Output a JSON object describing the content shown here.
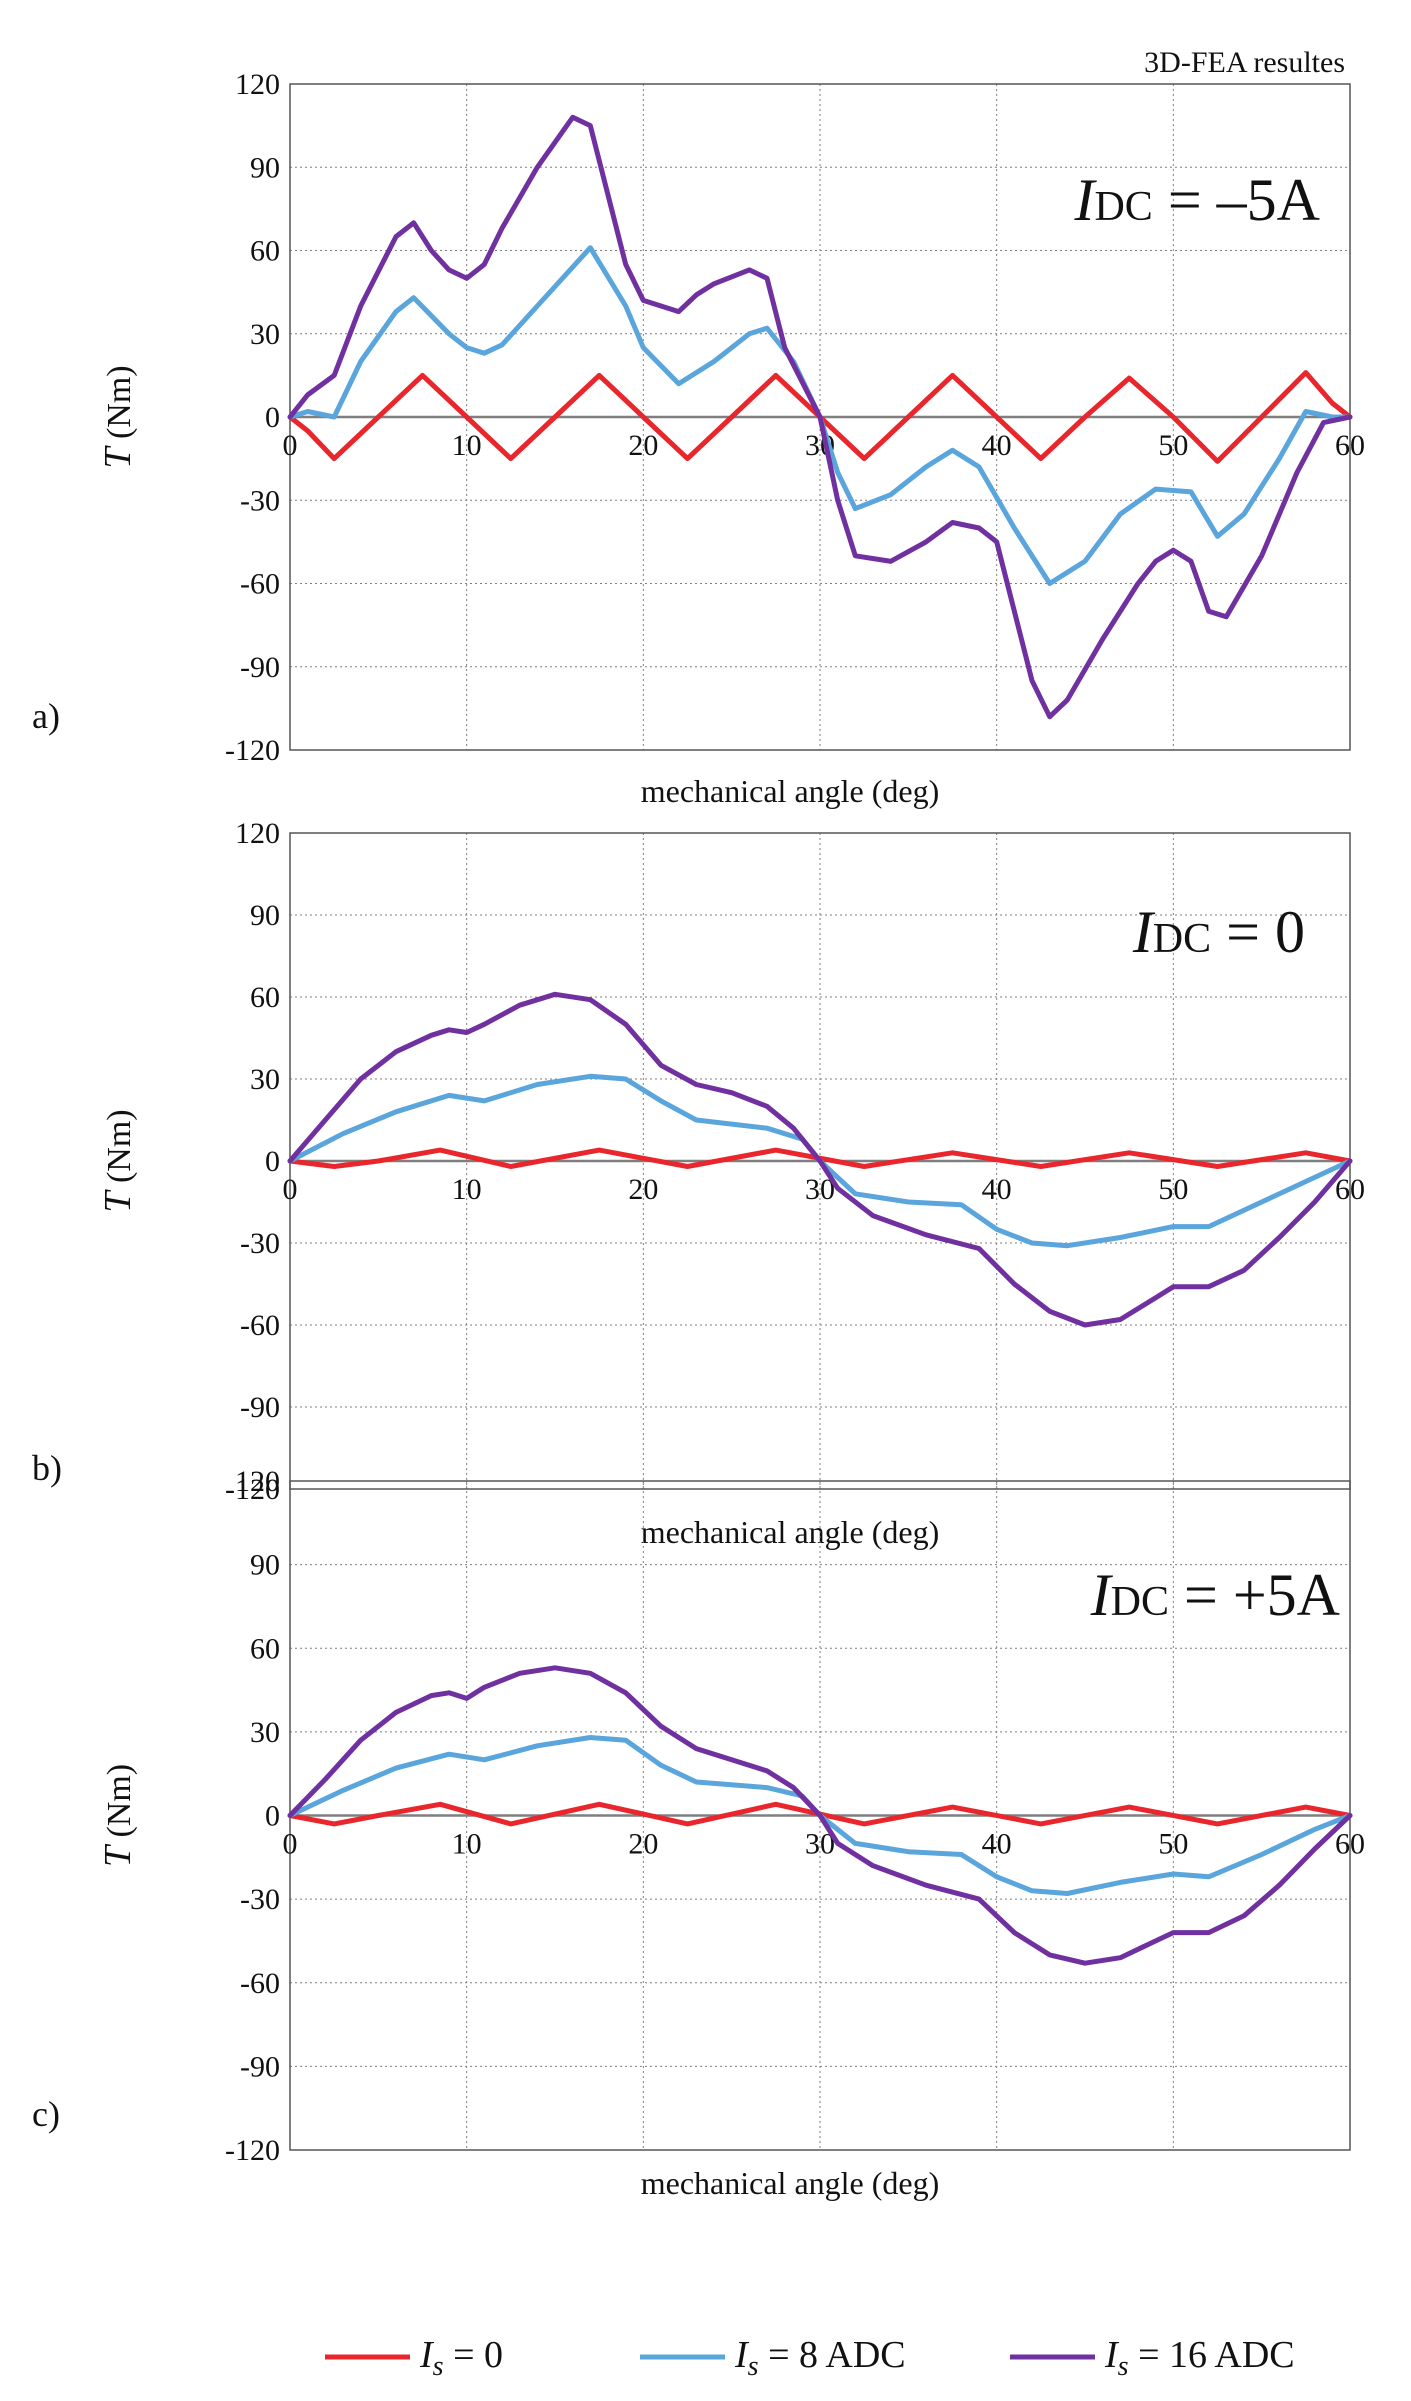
{
  "header_note": "3D-FEA resultes",
  "legend": [
    {
      "label_main": "I",
      "label_sub": "s",
      "label_rest": " = 0",
      "color": "#e8262c"
    },
    {
      "label_main": "I",
      "label_sub": "s",
      "label_rest": " = 8 ADC",
      "color": "#5aa5dc"
    },
    {
      "label_main": "I",
      "label_sub": "s",
      "label_rest": " = 16 ADC",
      "color": "#7030a0"
    }
  ],
  "colors": {
    "red": "#e8262c",
    "blue": "#5aa5dc",
    "purple": "#7030a0",
    "grid": "#7f7f7f"
  },
  "chart_data": [
    {
      "type": "line",
      "panel_label": "a)",
      "annotation": {
        "main": "I",
        "sub": "DC",
        "rest": " = –5A"
      },
      "xlabel": "mechanical angle (deg)",
      "ylabel_main": "T",
      "ylabel_rest": " (Nm)",
      "xlim": [
        0,
        60
      ],
      "ylim": [
        -120,
        120
      ],
      "xticks": [
        0,
        10,
        20,
        30,
        40,
        50,
        60
      ],
      "yticks": [
        120,
        90,
        60,
        30,
        0,
        -30,
        -60,
        -90,
        -120
      ],
      "series": [
        {
          "name": "Is = 0",
          "color": "#e8262c",
          "x": [
            0,
            1,
            2.5,
            5,
            7.5,
            10,
            12.5,
            15,
            17.5,
            20,
            22.5,
            25,
            27.5,
            30,
            32.5,
            35,
            37.5,
            40,
            42.5,
            45,
            47.5,
            50,
            52.5,
            55,
            57.5,
            59,
            60
          ],
          "y": [
            0,
            -5,
            -15,
            0,
            15,
            0,
            -15,
            0,
            15,
            0,
            -15,
            0,
            15,
            0,
            -15,
            0,
            15,
            0,
            -15,
            0,
            14,
            0,
            -16,
            0,
            16,
            5,
            0
          ]
        },
        {
          "name": "Is = 8 ADC",
          "color": "#5aa5dc",
          "x": [
            0,
            1,
            2.5,
            4,
            6,
            7,
            9,
            10,
            11,
            12,
            14,
            17,
            19,
            20,
            22,
            24,
            26,
            27,
            28.5,
            30,
            31,
            32,
            34,
            36,
            37.5,
            39,
            41,
            43,
            45,
            47,
            49,
            51,
            52.5,
            54,
            56,
            57.5,
            59,
            60
          ],
          "y": [
            0,
            2,
            0,
            20,
            38,
            43,
            30,
            25,
            23,
            26,
            40,
            61,
            40,
            25,
            12,
            20,
            30,
            32,
            20,
            0,
            -20,
            -33,
            -28,
            -18,
            -12,
            -18,
            -40,
            -60,
            -52,
            -35,
            -26,
            -27,
            -43,
            -35,
            -15,
            2,
            0,
            0
          ]
        },
        {
          "name": "Is = 16 ADC",
          "color": "#7030a0",
          "x": [
            0,
            1,
            2.5,
            4,
            6,
            7,
            8,
            9,
            10,
            11,
            12,
            14,
            16,
            17,
            18,
            19,
            20,
            21,
            22,
            23,
            24,
            26,
            27,
            28,
            30,
            31,
            32,
            34,
            36,
            37.5,
            39,
            40,
            42,
            43,
            44,
            46,
            48,
            49,
            50,
            51,
            52,
            53,
            55,
            57,
            58.5,
            60
          ],
          "y": [
            0,
            8,
            15,
            40,
            65,
            70,
            60,
            53,
            50,
            55,
            68,
            90,
            108,
            105,
            80,
            55,
            42,
            40,
            38,
            44,
            48,
            53,
            50,
            25,
            0,
            -30,
            -50,
            -52,
            -45,
            -38,
            -40,
            -45,
            -95,
            -108,
            -102,
            -80,
            -60,
            -52,
            -48,
            -52,
            -70,
            -72,
            -50,
            -20,
            -2,
            0
          ]
        }
      ]
    },
    {
      "type": "line",
      "panel_label": "b)",
      "annotation": {
        "main": "I",
        "sub": "DC",
        "rest": "  = 0"
      },
      "xlabel": "mechanical angle (deg)",
      "ylabel_main": "T",
      "ylabel_rest": " (Nm)",
      "xlim": [
        0,
        60
      ],
      "ylim": [
        -120,
        120
      ],
      "xticks": [
        0,
        10,
        20,
        30,
        40,
        50,
        60
      ],
      "yticks": [
        120,
        90,
        60,
        30,
        0,
        -30,
        -60,
        -90,
        -120
      ],
      "series": [
        {
          "name": "Is = 0",
          "color": "#e8262c",
          "x": [
            0,
            2.5,
            5,
            8.5,
            12.5,
            17.5,
            22.5,
            27.5,
            32.5,
            37.5,
            42.5,
            47.5,
            52.5,
            57.5,
            60
          ],
          "y": [
            0,
            -2,
            0,
            4,
            -2,
            4,
            -2,
            4,
            -2,
            3,
            -2,
            3,
            -2,
            3,
            0
          ]
        },
        {
          "name": "Is = 8 ADC",
          "color": "#5aa5dc",
          "x": [
            0,
            3,
            6,
            9,
            11,
            14,
            17,
            19,
            21,
            23,
            27,
            29,
            30,
            32,
            35,
            38,
            40,
            42,
            44,
            47,
            50,
            52,
            55,
            58,
            60
          ],
          "y": [
            0,
            10,
            18,
            24,
            22,
            28,
            31,
            30,
            22,
            15,
            12,
            8,
            0,
            -12,
            -15,
            -16,
            -25,
            -30,
            -31,
            -28,
            -24,
            -24,
            -15,
            -6,
            0
          ]
        },
        {
          "name": "Is = 16 ADC",
          "color": "#7030a0",
          "x": [
            0,
            2,
            4,
            6,
            8,
            9,
            10,
            11,
            13,
            15,
            17,
            19,
            21,
            23,
            25,
            27,
            28.5,
            30,
            31,
            33,
            36,
            39,
            41,
            43,
            45,
            47,
            49,
            50,
            52,
            54,
            56,
            58,
            60
          ],
          "y": [
            0,
            15,
            30,
            40,
            46,
            48,
            47,
            50,
            57,
            61,
            59,
            50,
            35,
            28,
            25,
            20,
            12,
            0,
            -10,
            -20,
            -27,
            -32,
            -45,
            -55,
            -60,
            -58,
            -50,
            -46,
            -46,
            -40,
            -28,
            -15,
            0
          ]
        }
      ]
    },
    {
      "type": "line",
      "panel_label": "c)",
      "annotation": {
        "main": "I",
        "sub": "DC",
        "rest": " = +5A"
      },
      "xlabel": "mechanical angle (deg)",
      "ylabel_main": "T",
      "ylabel_rest": " (Nm)",
      "xlim": [
        0,
        60
      ],
      "ylim": [
        -120,
        120
      ],
      "xticks": [
        0,
        10,
        20,
        30,
        40,
        50,
        60
      ],
      "yticks": [
        120,
        90,
        60,
        30,
        0,
        -30,
        -60,
        -90,
        -120
      ],
      "series": [
        {
          "name": "Is = 0",
          "color": "#e8262c",
          "x": [
            0,
            2.5,
            5,
            8.5,
            12.5,
            17.5,
            22.5,
            27.5,
            32.5,
            37.5,
            42.5,
            47.5,
            52.5,
            57.5,
            60
          ],
          "y": [
            0,
            -3,
            0,
            4,
            -3,
            4,
            -3,
            4,
            -3,
            3,
            -3,
            3,
            -3,
            3,
            0
          ]
        },
        {
          "name": "Is = 8 ADC",
          "color": "#5aa5dc",
          "x": [
            0,
            3,
            6,
            9,
            11,
            14,
            17,
            19,
            21,
            23,
            27,
            29,
            30,
            32,
            35,
            38,
            40,
            42,
            44,
            47,
            50,
            52,
            55,
            58,
            60
          ],
          "y": [
            0,
            9,
            17,
            22,
            20,
            25,
            28,
            27,
            18,
            12,
            10,
            7,
            0,
            -10,
            -13,
            -14,
            -22,
            -27,
            -28,
            -24,
            -21,
            -22,
            -14,
            -5,
            0
          ]
        },
        {
          "name": "Is = 16 ADC",
          "color": "#7030a0",
          "x": [
            0,
            2,
            4,
            6,
            8,
            9,
            10,
            11,
            13,
            15,
            17,
            19,
            21,
            23,
            25,
            27,
            28.5,
            30,
            31,
            33,
            36,
            39,
            41,
            43,
            45,
            47,
            49,
            50,
            52,
            54,
            56,
            58,
            60
          ],
          "y": [
            0,
            13,
            27,
            37,
            43,
            44,
            42,
            46,
            51,
            53,
            51,
            44,
            32,
            24,
            20,
            16,
            10,
            0,
            -10,
            -18,
            -25,
            -30,
            -42,
            -50,
            -53,
            -51,
            -45,
            -42,
            -42,
            -36,
            -25,
            -12,
            0
          ]
        }
      ]
    }
  ]
}
